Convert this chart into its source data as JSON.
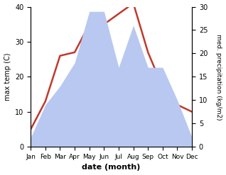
{
  "months": [
    "Jan",
    "Feb",
    "Mar",
    "Apr",
    "May",
    "Jun",
    "Jul",
    "Aug",
    "Sep",
    "Oct",
    "Nov",
    "Dec"
  ],
  "temperature": [
    5,
    13,
    26,
    27,
    35,
    35,
    38,
    41,
    27,
    17,
    12,
    10
  ],
  "precipitation": [
    2,
    9,
    13,
    18,
    29,
    29,
    17,
    26,
    17,
    17,
    10,
    2
  ],
  "temp_color": "#c0392b",
  "precip_color_fill": "#b8c8f0",
  "temp_ylim": [
    0,
    40
  ],
  "precip_ylim": [
    0,
    30
  ],
  "temp_yticks": [
    0,
    10,
    20,
    30,
    40
  ],
  "precip_yticks": [
    0,
    5,
    10,
    15,
    20,
    25,
    30
  ],
  "xlabel": "date (month)",
  "ylabel_left": "max temp (C)",
  "ylabel_right": "med. precipitation (kg/m2)",
  "figsize": [
    3.18,
    2.47
  ],
  "dpi": 100
}
